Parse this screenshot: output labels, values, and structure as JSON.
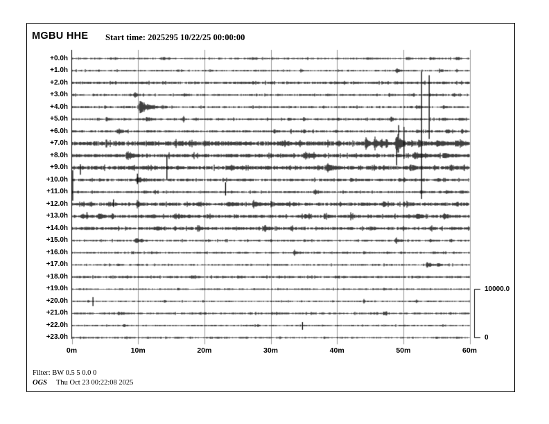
{
  "header": {
    "title": "MGBU HHE",
    "start_time_label": "Start time: 2025295 10/22/25 00:00:00"
  },
  "scale_bar": {
    "max": "10000.0",
    "min": "0"
  },
  "footer": {
    "filter": "Filter: BW 0.5 5 0.0 0",
    "agency": "OGS",
    "timestamp": "Thu Oct 23 00:22:08 2025"
  },
  "chart_data": {
    "type": "line",
    "variant": "helicorder-seismogram",
    "station": "MGBU",
    "channel": "HHE",
    "start_time": "2025295 10/22/25 00:00:00",
    "title": "MGBU HHE",
    "x_ticks": [
      "0m",
      "10m",
      "20m",
      "30m",
      "40m",
      "50m",
      "60m"
    ],
    "x_range_minutes": [
      0,
      60
    ],
    "minutes_per_row": 60,
    "row_offset_unit": "hours",
    "amplitude_scale": {
      "max": 10000.0,
      "min": 0
    },
    "grid": true,
    "colors": {
      "trace": "#000000",
      "grid": "#999999",
      "background": "#ffffff"
    },
    "rows": [
      {
        "label": "+0.0h",
        "hour": 0,
        "noise": 1.0,
        "gap": 0.45,
        "events": [
          {
            "t": 6.5,
            "amp": 2,
            "dur": 0.8
          },
          {
            "t": 13.8,
            "amp": 2.2,
            "dur": 0.6
          },
          {
            "t": 27.2,
            "amp": 2.5,
            "dur": 0.8
          },
          {
            "t": 44.5,
            "amp": 2,
            "dur": 0.6
          },
          {
            "t": 50.5,
            "amp": 1.8,
            "dur": 1.5
          },
          {
            "t": 54,
            "amp": 1.8,
            "dur": 1.5
          },
          {
            "t": 58,
            "amp": 1.8,
            "dur": 1
          }
        ],
        "spikes": []
      },
      {
        "label": "+1.0h",
        "hour": 1,
        "noise": 1.0,
        "gap": 0.42,
        "events": [
          {
            "t": 4,
            "amp": 2,
            "dur": 0.5
          },
          {
            "t": 34.5,
            "amp": 2,
            "dur": 0.5
          },
          {
            "t": 49,
            "amp": 3,
            "dur": 1.2
          },
          {
            "t": 55.5,
            "amp": 2.5,
            "dur": 0.8
          },
          {
            "t": 58,
            "amp": 2.5,
            "dur": 0.6
          }
        ],
        "spikes": []
      },
      {
        "label": "+2.0h",
        "hour": 2,
        "noise": 1.4,
        "gap": 0.12,
        "events": [
          {
            "t": 49,
            "amp": 2,
            "dur": 0.6
          },
          {
            "t": 56,
            "amp": 2.5,
            "dur": 0.6
          }
        ],
        "spikes": []
      },
      {
        "label": "+3.0h",
        "hour": 3,
        "noise": 1.1,
        "gap": 0.3,
        "events": [
          {
            "t": 9.4,
            "amp": 5,
            "dur": 0.9
          },
          {
            "t": 17,
            "amp": 2.5,
            "dur": 0.5
          },
          {
            "t": 47.8,
            "amp": 3,
            "dur": 0.5
          },
          {
            "t": 51.5,
            "amp": 2,
            "dur": 0.4
          },
          {
            "t": 54,
            "amp": 2.5,
            "dur": 0.5
          },
          {
            "t": 57.5,
            "amp": 2.5,
            "dur": 0.5
          }
        ],
        "spikes": []
      },
      {
        "label": "+4.0h",
        "hour": 4,
        "noise": 1.2,
        "gap": 0.28,
        "events": [
          {
            "t": 5,
            "amp": 2,
            "dur": 0.5
          },
          {
            "t": 10.2,
            "amp": 9,
            "dur": 3.5
          },
          {
            "t": 36,
            "amp": 2,
            "dur": 0.5
          },
          {
            "t": 40.8,
            "amp": 2.2,
            "dur": 0.6
          },
          {
            "t": 52,
            "amp": 2,
            "dur": 1
          },
          {
            "t": 56,
            "amp": 2,
            "dur": 1
          }
        ],
        "spikes": [
          {
            "t": 53.9,
            "up": 46,
            "down": 46
          }
        ]
      },
      {
        "label": "+5.0h",
        "hour": 5,
        "noise": 1.2,
        "gap": 0.25,
        "events": [
          {
            "t": 5.2,
            "amp": 3.5,
            "dur": 0.6
          },
          {
            "t": 11.3,
            "amp": 4,
            "dur": 1
          },
          {
            "t": 16.8,
            "amp": 3,
            "dur": 0.5
          },
          {
            "t": 18.7,
            "amp": 3.5,
            "dur": 0.5
          },
          {
            "t": 32.6,
            "amp": 3.5,
            "dur": 0.5
          },
          {
            "t": 34.9,
            "amp": 3,
            "dur": 0.5
          },
          {
            "t": 40.1,
            "amp": 2.8,
            "dur": 0.4
          },
          {
            "t": 48.1,
            "amp": 4,
            "dur": 0.7
          },
          {
            "t": 56,
            "amp": 2.5,
            "dur": 1
          },
          {
            "t": 58.5,
            "amp": 3,
            "dur": 0.8
          }
        ],
        "spikes": []
      },
      {
        "label": "+6.0h",
        "hour": 6,
        "noise": 1.3,
        "gap": 0.2,
        "events": [
          {
            "t": 6.9,
            "amp": 4.5,
            "dur": 1.2
          },
          {
            "t": 30.5,
            "amp": 2.5,
            "dur": 1
          },
          {
            "t": 33,
            "amp": 2.5,
            "dur": 0.8
          },
          {
            "t": 35,
            "amp": 2.5,
            "dur": 0.6
          },
          {
            "t": 52,
            "amp": 3,
            "dur": 0.6
          },
          {
            "t": 56.5,
            "amp": 3,
            "dur": 1
          },
          {
            "t": 58.8,
            "amp": 3,
            "dur": 0.6
          }
        ],
        "spikes": [
          {
            "t": 49.3,
            "up": 9,
            "down": 5
          }
        ]
      },
      {
        "label": "+7.0h",
        "hour": 7,
        "noise": 2.6,
        "gap": 0.04,
        "events": [
          {
            "t": 15.5,
            "amp": 3,
            "dur": 0.7
          },
          {
            "t": 20,
            "amp": 3,
            "dur": 0.5
          },
          {
            "t": 31.5,
            "amp": 4,
            "dur": 1
          },
          {
            "t": 44.3,
            "amp": 10,
            "dur": 0.8
          },
          {
            "t": 45.6,
            "amp": 12,
            "dur": 0.7
          },
          {
            "t": 46.6,
            "amp": 8,
            "dur": 0.6
          },
          {
            "t": 47.4,
            "amp": 9,
            "dur": 0.5
          },
          {
            "t": 48.9,
            "amp": 18,
            "dur": 1.6
          },
          {
            "t": 52.3,
            "amp": 8,
            "dur": 0.8
          },
          {
            "t": 55,
            "amp": 4,
            "dur": 2
          },
          {
            "t": 57.9,
            "amp": 6,
            "dur": 0.8
          }
        ],
        "spikes": [
          {
            "t": 52.75,
            "up": 104,
            "down": 80
          },
          {
            "t": 50.1,
            "up": 24,
            "down": 22
          }
        ]
      },
      {
        "label": "+8.0h",
        "hour": 8,
        "noise": 2.0,
        "gap": 0.08,
        "events": [
          {
            "t": 0.8,
            "amp": 3,
            "dur": 0.5
          },
          {
            "t": 8.2,
            "amp": 6,
            "dur": 2
          },
          {
            "t": 14.6,
            "amp": 4,
            "dur": 0.4
          },
          {
            "t": 18.3,
            "amp": 3.5,
            "dur": 0.4
          },
          {
            "t": 26.3,
            "amp": 3,
            "dur": 0.4
          },
          {
            "t": 35,
            "amp": 5,
            "dur": 2.5
          },
          {
            "t": 51.5,
            "amp": 4,
            "dur": 3
          },
          {
            "t": 56,
            "amp": 4,
            "dur": 2
          }
        ],
        "spikes": [
          {
            "t": 49,
            "up": 10,
            "down": 14
          }
        ]
      },
      {
        "label": "+9.0h",
        "hour": 9,
        "noise": 2.2,
        "gap": 0.08,
        "events": [
          {
            "t": 24,
            "amp": 3,
            "dur": 0.8
          },
          {
            "t": 38.5,
            "amp": 6,
            "dur": 1.5
          },
          {
            "t": 47,
            "amp": 3,
            "dur": 0.8
          },
          {
            "t": 51,
            "amp": 3.5,
            "dur": 1.5
          },
          {
            "t": 57,
            "amp": 3.5,
            "dur": 1.5
          }
        ],
        "spikes": [
          {
            "t": 1.3,
            "up": 5,
            "down": 10
          },
          {
            "t": 14.35,
            "up": 17,
            "down": 17
          }
        ]
      },
      {
        "label": "+10.0h",
        "hour": 10,
        "noise": 1.5,
        "gap": 0.2,
        "events": [
          {
            "t": 9.8,
            "amp": 4,
            "dur": 2.5
          },
          {
            "t": 25.8,
            "amp": 2.5,
            "dur": 0.5
          },
          {
            "t": 33,
            "amp": 2,
            "dur": 0.5
          },
          {
            "t": 42,
            "amp": 2.5,
            "dur": 0.6
          },
          {
            "t": 50,
            "amp": 2.5,
            "dur": 0.8
          },
          {
            "t": 55,
            "amp": 2.5,
            "dur": 0.8
          }
        ],
        "spikes": [
          {
            "t": 0.15,
            "up": 14,
            "down": 30
          },
          {
            "t": 9.9,
            "up": 9,
            "down": 6
          }
        ]
      },
      {
        "label": "+11.0h",
        "hour": 11,
        "noise": 1.2,
        "gap": 0.25,
        "events": [
          {
            "t": 10.8,
            "amp": 3,
            "dur": 1
          },
          {
            "t": 12.4,
            "amp": 2.5,
            "dur": 0.6
          },
          {
            "t": 36.5,
            "amp": 5,
            "dur": 1.2
          },
          {
            "t": 52.5,
            "amp": 3.5,
            "dur": 0.8
          },
          {
            "t": 56.5,
            "amp": 3.5,
            "dur": 1
          },
          {
            "t": 58.8,
            "amp": 3,
            "dur": 0.6
          }
        ],
        "spikes": [
          {
            "t": 23.2,
            "up": 14,
            "down": 5
          }
        ]
      },
      {
        "label": "+12.0h",
        "hour": 12,
        "noise": 1.9,
        "gap": 0.1,
        "events": [
          {
            "t": 5.5,
            "amp": 3,
            "dur": 1
          },
          {
            "t": 9.8,
            "amp": 6,
            "dur": 0.8
          },
          {
            "t": 19,
            "amp": 3,
            "dur": 0.8
          },
          {
            "t": 23.5,
            "amp": 3,
            "dur": 1.5
          },
          {
            "t": 27.3,
            "amp": 6,
            "dur": 1.5
          },
          {
            "t": 30,
            "amp": 3,
            "dur": 1
          },
          {
            "t": 47,
            "amp": 3,
            "dur": 1
          },
          {
            "t": 50,
            "amp": 3,
            "dur": 1.5
          },
          {
            "t": 58,
            "amp": 3,
            "dur": 1
          }
        ],
        "spikes": [
          {
            "t": 6.3,
            "up": 7,
            "down": 4
          }
        ]
      },
      {
        "label": "+13.0h",
        "hour": 13,
        "noise": 1.8,
        "gap": 0.12,
        "events": [
          {
            "t": 1.5,
            "amp": 3.5,
            "dur": 1.5
          },
          {
            "t": 4,
            "amp": 3.5,
            "dur": 1.5
          },
          {
            "t": 6,
            "amp": 3,
            "dur": 1
          },
          {
            "t": 15.5,
            "amp": 4,
            "dur": 2
          },
          {
            "t": 20.4,
            "amp": 3,
            "dur": 0.5
          },
          {
            "t": 35,
            "amp": 3,
            "dur": 1.5
          },
          {
            "t": 38,
            "amp": 3.5,
            "dur": 1
          },
          {
            "t": 42,
            "amp": 3,
            "dur": 1
          },
          {
            "t": 52,
            "amp": 3,
            "dur": 2
          },
          {
            "t": 56,
            "amp": 3,
            "dur": 2
          }
        ],
        "spikes": [
          {
            "t": 2.3,
            "up": 6,
            "down": 4
          }
        ]
      },
      {
        "label": "+14.0h",
        "hour": 14,
        "noise": 1.7,
        "gap": 0.14,
        "events": [
          {
            "t": 2,
            "amp": 2,
            "dur": 2
          },
          {
            "t": 12.5,
            "amp": 2.5,
            "dur": 1.5
          },
          {
            "t": 15.5,
            "amp": 2.5,
            "dur": 1
          },
          {
            "t": 19,
            "amp": 3.5,
            "dur": 1
          },
          {
            "t": 29,
            "amp": 4,
            "dur": 1
          },
          {
            "t": 33,
            "amp": 2.5,
            "dur": 0.8
          },
          {
            "t": 45,
            "amp": 2.5,
            "dur": 1
          },
          {
            "t": 54,
            "amp": 2.5,
            "dur": 1
          }
        ],
        "spikes": []
      },
      {
        "label": "+15.0h",
        "hour": 15,
        "noise": 1.1,
        "gap": 0.3,
        "events": [
          {
            "t": 9.6,
            "amp": 5,
            "dur": 1.5
          },
          {
            "t": 30,
            "amp": 2,
            "dur": 0.5
          },
          {
            "t": 48.8,
            "amp": 5,
            "dur": 1
          },
          {
            "t": 54,
            "amp": 2.5,
            "dur": 0.6
          },
          {
            "t": 57,
            "amp": 2.5,
            "dur": 0.6
          }
        ],
        "spikes": []
      },
      {
        "label": "+16.0h",
        "hour": 16,
        "noise": 1.0,
        "gap": 0.3,
        "events": [
          {
            "t": 12,
            "amp": 2,
            "dur": 0.5
          },
          {
            "t": 33.5,
            "amp": 5,
            "dur": 1
          },
          {
            "t": 44,
            "amp": 2,
            "dur": 0.5
          },
          {
            "t": 54.5,
            "amp": 2,
            "dur": 0.5
          }
        ],
        "spikes": []
      },
      {
        "label": "+17.0h",
        "hour": 17,
        "noise": 1.0,
        "gap": 0.3,
        "events": [
          {
            "t": 7,
            "amp": 2,
            "dur": 0.5
          },
          {
            "t": 53.5,
            "amp": 4.5,
            "dur": 1.5
          },
          {
            "t": 55.2,
            "amp": 3,
            "dur": 0.8
          }
        ],
        "spikes": []
      },
      {
        "label": "+18.0h",
        "hour": 18,
        "noise": 1.2,
        "gap": 0.2,
        "events": [
          {
            "t": 18,
            "amp": 2.5,
            "dur": 1
          },
          {
            "t": 25,
            "amp": 2,
            "dur": 0.5
          },
          {
            "t": 40,
            "amp": 2,
            "dur": 0.5
          }
        ],
        "spikes": []
      },
      {
        "label": "+19.0h",
        "hour": 19,
        "noise": 0.9,
        "gap": 0.35,
        "events": [
          {
            "t": 16,
            "amp": 2,
            "dur": 0.4
          },
          {
            "t": 31,
            "amp": 2,
            "dur": 0.4
          },
          {
            "t": 47,
            "amp": 2,
            "dur": 0.4
          }
        ],
        "spikes": []
      },
      {
        "label": "+20.0h",
        "hour": 20,
        "noise": 0.9,
        "gap": 0.35,
        "events": [
          {
            "t": 14,
            "amp": 1.8,
            "dur": 0.4
          },
          {
            "t": 44,
            "amp": 2,
            "dur": 0.4
          },
          {
            "t": 52,
            "amp": 2,
            "dur": 0.4
          }
        ],
        "spikes": [
          {
            "t": 3.2,
            "up": 6,
            "down": 7
          }
        ]
      },
      {
        "label": "+21.0h",
        "hour": 21,
        "noise": 1.1,
        "gap": 0.25,
        "events": [
          {
            "t": 7,
            "amp": 2.5,
            "dur": 1.5
          },
          {
            "t": 20,
            "amp": 2,
            "dur": 0.5
          },
          {
            "t": 47,
            "amp": 2.5,
            "dur": 1
          },
          {
            "t": 57,
            "amp": 2,
            "dur": 0.5
          }
        ],
        "spikes": []
      },
      {
        "label": "+22.0h",
        "hour": 22,
        "noise": 0.9,
        "gap": 0.32,
        "events": [
          {
            "t": 7.8,
            "amp": 2,
            "dur": 1
          },
          {
            "t": 28,
            "amp": 1.8,
            "dur": 0.4
          },
          {
            "t": 50,
            "amp": 1.8,
            "dur": 0.4
          }
        ],
        "spikes": [
          {
            "t": 34.8,
            "up": 5,
            "down": 6
          }
        ]
      },
      {
        "label": "+23.0h",
        "hour": 23,
        "noise": 0.9,
        "gap": 0.32,
        "events": [
          {
            "t": 8,
            "amp": 1.8,
            "dur": 0.4
          },
          {
            "t": 15.5,
            "amp": 2,
            "dur": 0.8
          },
          {
            "t": 22,
            "amp": 1.8,
            "dur": 0.4
          },
          {
            "t": 38,
            "amp": 1.8,
            "dur": 0.4
          },
          {
            "t": 55,
            "amp": 1.8,
            "dur": 0.4
          }
        ],
        "spikes": []
      }
    ]
  }
}
